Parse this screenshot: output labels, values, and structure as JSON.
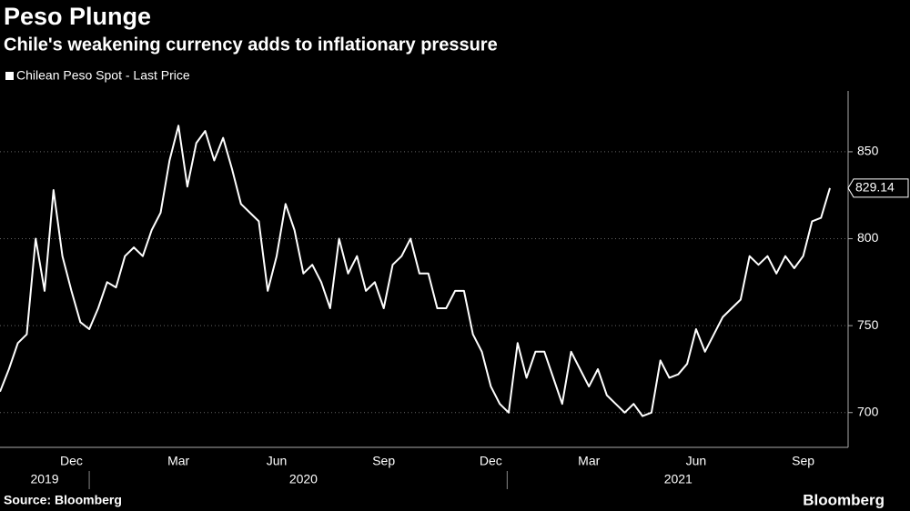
{
  "chart_data": {
    "type": "line",
    "title": "Peso Plunge",
    "subtitle": "Chile's weakening currency adds to inflationary pressure",
    "source": "Source: Bloomberg",
    "brand": "Bloomberg",
    "categories": [
      null,
      null,
      null,
      null,
      null,
      null,
      null,
      null,
      "Dec",
      null,
      null,
      null,
      null,
      null,
      null,
      null,
      null,
      null,
      null,
      null,
      "Mar",
      null,
      null,
      null,
      null,
      null,
      null,
      null,
      null,
      null,
      null,
      "Jun",
      null,
      null,
      null,
      null,
      null,
      null,
      null,
      null,
      null,
      null,
      null,
      "Sep",
      null,
      null,
      null,
      null,
      null,
      null,
      null,
      null,
      null,
      null,
      null,
      "Dec",
      null,
      null,
      null,
      null,
      null,
      null,
      null,
      null,
      null,
      null,
      "Mar",
      null,
      null,
      null,
      null,
      null,
      null,
      null,
      null,
      null,
      null,
      null,
      "Jun",
      null,
      null,
      null,
      null,
      null,
      null,
      null,
      null,
      null,
      null,
      null,
      "Sep",
      null,
      null,
      null
    ],
    "year_labels": [
      null,
      null,
      null,
      null,
      null,
      "2019",
      null,
      null,
      null,
      null,
      null,
      null,
      null,
      null,
      null,
      null,
      null,
      null,
      null,
      null,
      null,
      null,
      null,
      null,
      null,
      null,
      null,
      null,
      null,
      null,
      null,
      null,
      null,
      null,
      "2020",
      null,
      null,
      null,
      null,
      null,
      null,
      null,
      null,
      null,
      null,
      null,
      null,
      null,
      null,
      null,
      null,
      null,
      null,
      null,
      null,
      null,
      null,
      null,
      null,
      null,
      null,
      null,
      null,
      null,
      null,
      null,
      null,
      null,
      null,
      null,
      null,
      null,
      null,
      null,
      null,
      null,
      "2021",
      null,
      null,
      null,
      null,
      null,
      null,
      null,
      null,
      null,
      null,
      null,
      null,
      null,
      null,
      null,
      null,
      null
    ],
    "series": [
      {
        "name": "Chilean Peso Spot - Last Price",
        "color": "#ffffff",
        "values": [
          712,
          725,
          740,
          745,
          800,
          770,
          828,
          790,
          770,
          752,
          748,
          760,
          775,
          772,
          790,
          795,
          790,
          805,
          815,
          845,
          865,
          830,
          855,
          862,
          845,
          858,
          840,
          820,
          815,
          810,
          770,
          790,
          820,
          805,
          780,
          785,
          775,
          760,
          800,
          780,
          790,
          770,
          775,
          760,
          785,
          790,
          800,
          780,
          780,
          760,
          760,
          770,
          770,
          745,
          735,
          715,
          705,
          700,
          740,
          720,
          735,
          735,
          720,
          705,
          735,
          725,
          715,
          725,
          710,
          705,
          700,
          705,
          698,
          700,
          730,
          720,
          722,
          728,
          748,
          735,
          745,
          755,
          760,
          765,
          790,
          785,
          790,
          780,
          790,
          783,
          790,
          810,
          812,
          829.14
        ]
      }
    ],
    "ylim": [
      680,
      885
    ],
    "yticks": [
      700,
      750,
      800,
      850
    ],
    "grid": true
  }
}
